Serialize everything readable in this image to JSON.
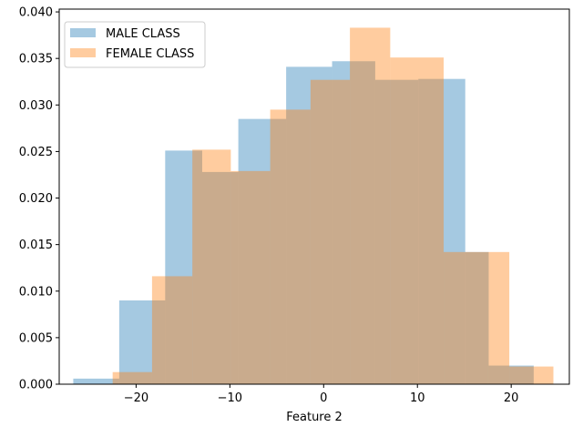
{
  "chart_data": {
    "type": "histogram",
    "title": "",
    "xlabel": "Feature 2",
    "ylabel": "",
    "xlim": [
      -28.2,
      26.2
    ],
    "ylim": [
      0,
      0.0403
    ],
    "x_ticks": [
      -20,
      -10,
      0,
      10,
      20
    ],
    "x_tick_labels": [
      "−20",
      "−10",
      "0",
      "10",
      "20"
    ],
    "y_ticks": [
      0.0,
      0.005,
      0.01,
      0.015,
      0.02,
      0.025,
      0.03,
      0.035,
      0.04
    ],
    "y_tick_labels": [
      "0.000",
      "0.005",
      "0.010",
      "0.015",
      "0.020",
      "0.025",
      "0.030",
      "0.035",
      "0.040"
    ],
    "grid": false,
    "legend_position": "upper-left",
    "alpha": 0.4,
    "series": [
      {
        "name": "MALE CLASS",
        "color": "#1f77b4",
        "bin_edges": [
          -26.7,
          -21.8,
          -16.9,
          -12.95,
          -9.1,
          -4.0,
          0.9,
          5.5,
          10.1,
          15.1,
          17.6,
          22.4
        ],
        "values": [
          0.0006,
          0.009,
          0.0251,
          0.0228,
          0.0285,
          0.0341,
          0.0347,
          0.0327,
          0.0328,
          0.0142,
          0.002
        ]
      },
      {
        "name": "FEMALE CLASS",
        "color": "#ff7f0e",
        "bin_edges": [
          -22.5,
          -18.3,
          -14.0,
          -9.9,
          -5.7,
          -1.4,
          2.8,
          7.1,
          12.8,
          17.5,
          19.8,
          24.5
        ],
        "values": [
          0.0013,
          0.0116,
          0.0252,
          0.0229,
          0.0295,
          0.0327,
          0.0383,
          0.0351,
          0.0142,
          0.0142,
          0.0019
        ]
      }
    ]
  }
}
